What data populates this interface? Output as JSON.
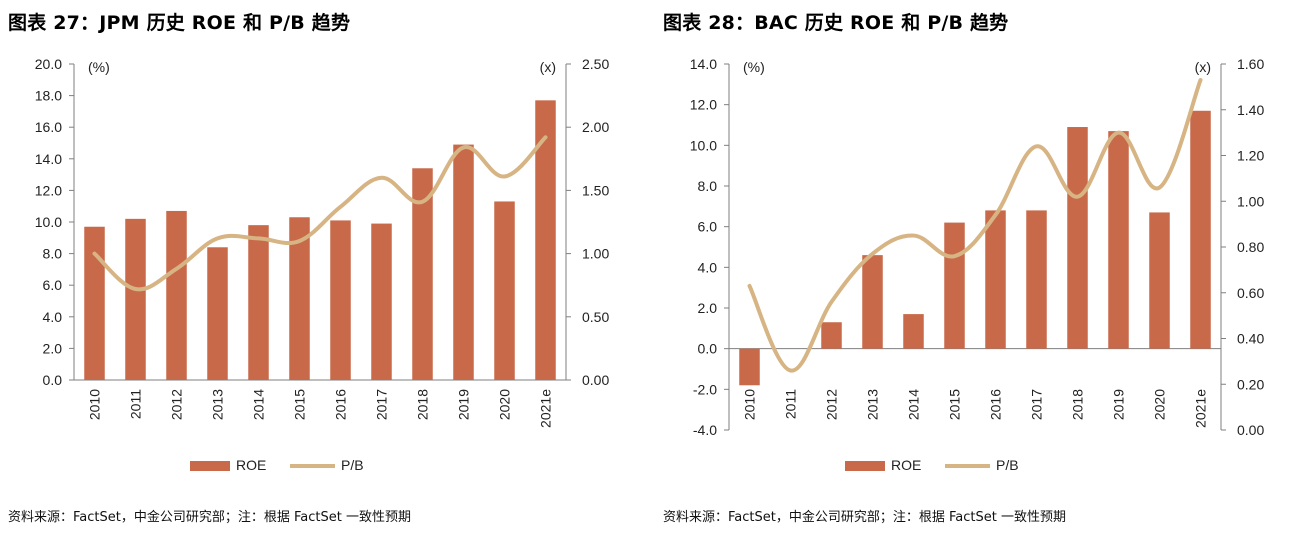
{
  "colors": {
    "bar": "#C8694A",
    "line": "#D7B484",
    "axis": "#7F7F7F",
    "text": "#222222"
  },
  "panels": [
    {
      "title": "图表 27：JPM 历史 ROE 和 P/B 趋势",
      "source": "资料来源：FactSet，中金公司研究部；注：根据 FactSet 一致性预期",
      "chart_data": {
        "type": "bar",
        "categories": [
          "2010",
          "2011",
          "2012",
          "2013",
          "2014",
          "2015",
          "2016",
          "2017",
          "2018",
          "2019",
          "2020",
          "2021e"
        ],
        "left_unit": "(%)",
        "right_unit": "(x)",
        "left_ticks": [
          "0.0",
          "2.0",
          "4.0",
          "6.0",
          "8.0",
          "10.0",
          "12.0",
          "14.0",
          "16.0",
          "18.0",
          "20.0"
        ],
        "right_ticks": [
          "0.00",
          "0.50",
          "1.00",
          "1.50",
          "2.00",
          "2.50"
        ],
        "ylim_left": [
          0,
          20
        ],
        "ylim_right": [
          0,
          2.5
        ],
        "legend_placement": "bottom-center",
        "grid": false,
        "series": [
          {
            "name": "ROE",
            "type": "bar",
            "axis": "left",
            "values": [
              9.7,
              10.2,
              10.7,
              8.4,
              9.8,
              10.3,
              10.1,
              9.9,
              13.4,
              14.9,
              11.3,
              17.7
            ]
          },
          {
            "name": "P/B",
            "type": "line",
            "axis": "right",
            "values": [
              1.0,
              0.72,
              0.88,
              1.12,
              1.12,
              1.1,
              1.37,
              1.6,
              1.41,
              1.84,
              1.61,
              1.92
            ]
          }
        ]
      }
    },
    {
      "title": "图表 28：BAC 历史 ROE 和 P/B 趋势",
      "source": "资料来源：FactSet，中金公司研究部；注：根据 FactSet 一致性预期",
      "chart_data": {
        "type": "bar",
        "categories": [
          "2010",
          "2011",
          "2012",
          "2013",
          "2014",
          "2015",
          "2016",
          "2017",
          "2018",
          "2019",
          "2020",
          "2021e"
        ],
        "left_unit": "(%)",
        "right_unit": "(x)",
        "left_ticks": [
          "-4.0",
          "-2.0",
          "0.0",
          "2.0",
          "4.0",
          "6.0",
          "8.0",
          "10.0",
          "12.0",
          "14.0"
        ],
        "right_ticks": [
          "0.00",
          "0.20",
          "0.40",
          "0.60",
          "0.80",
          "1.00",
          "1.20",
          "1.40",
          "1.60"
        ],
        "ylim_left": [
          -4,
          14
        ],
        "ylim_right": [
          0,
          1.6
        ],
        "legend_placement": "bottom-center",
        "grid": false,
        "series": [
          {
            "name": "ROE",
            "type": "bar",
            "axis": "left",
            "values": [
              -1.8,
              0.0,
              1.3,
              4.6,
              1.7,
              6.2,
              6.8,
              6.8,
              10.9,
              10.7,
              6.7,
              11.7
            ]
          },
          {
            "name": "P/B",
            "type": "line",
            "axis": "right",
            "values": [
              0.63,
              0.26,
              0.56,
              0.77,
              0.85,
              0.76,
              0.94,
              1.24,
              1.02,
              1.3,
              1.06,
              1.53
            ]
          }
        ]
      }
    }
  ]
}
